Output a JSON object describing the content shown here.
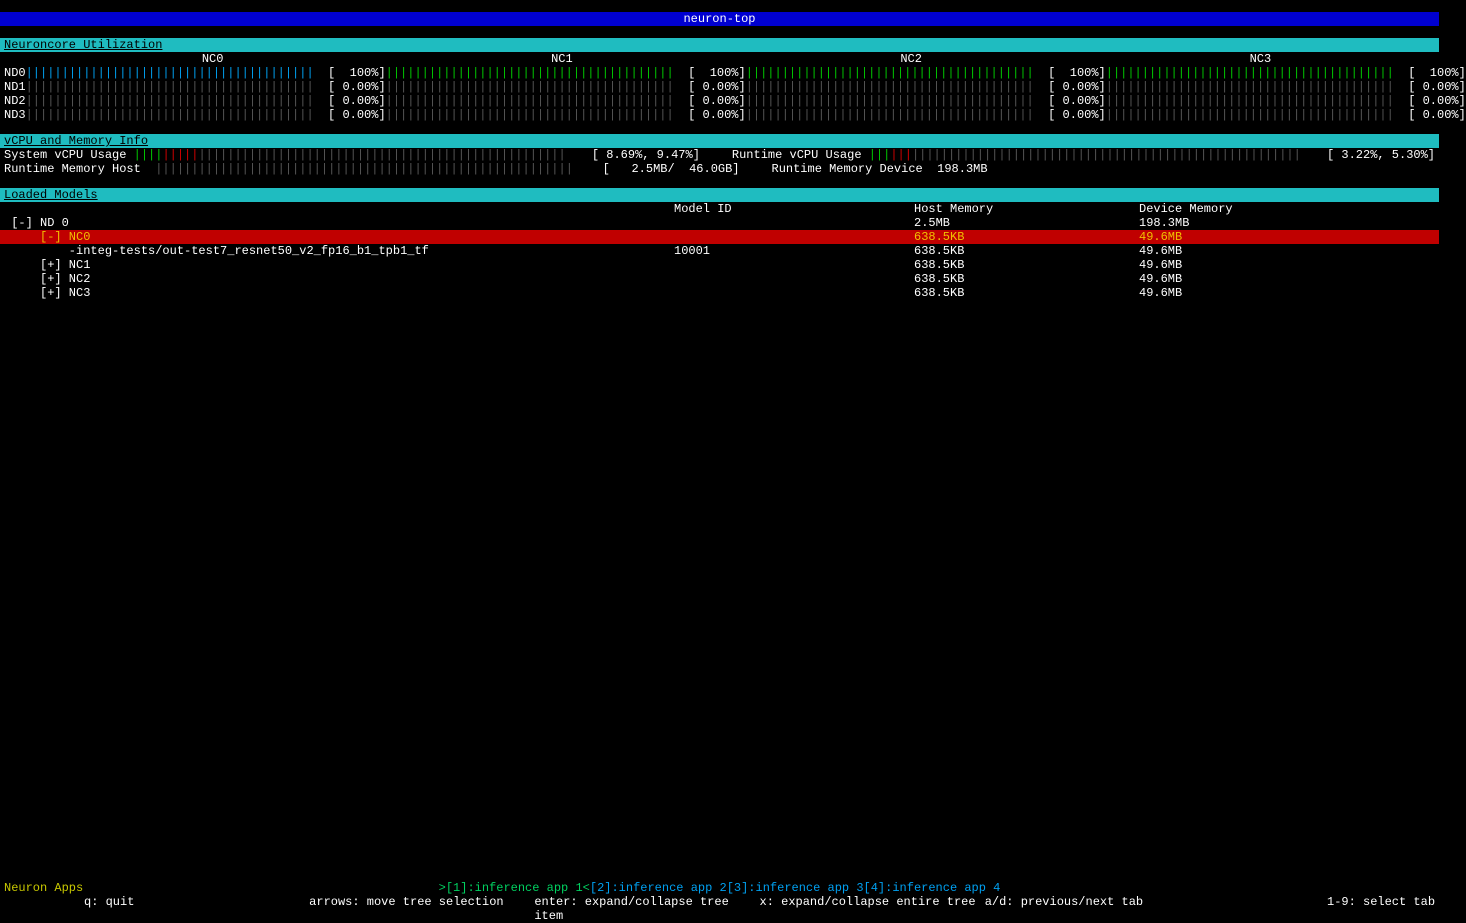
{
  "colors": {
    "title_bg": "#0000d0",
    "section_bg": "#1fbcc0",
    "selected_bg": "#c00000",
    "selected_fg": "#f0c000",
    "tick_blue": "#00a0f0",
    "tick_green": "#00c800",
    "tick_gray": "#555555",
    "tick_red": "#d00000",
    "yellow": "#c8c800",
    "footer_tab": "#00a0f0",
    "footer_tab_active": "#00d060"
  },
  "title": "neuron-top",
  "sections": {
    "util_header": "Neuroncore Utilization",
    "vcpu_header": "vCPU and Memory Info",
    "models_header": "Loaded Models"
  },
  "nc_headers": [
    "NC0",
    "NC1",
    "NC2",
    "NC3"
  ],
  "utilization": {
    "bar_segments": 40,
    "devices": [
      {
        "name": "ND0",
        "cores": [
          {
            "pct": "100%",
            "fill": 100,
            "color": "blue"
          },
          {
            "pct": "100%",
            "fill": 100,
            "color": "green"
          },
          {
            "pct": "100%",
            "fill": 100,
            "color": "green"
          },
          {
            "pct": "100%",
            "fill": 100,
            "color": "green"
          }
        ]
      },
      {
        "name": "ND1",
        "cores": [
          {
            "pct": "0.00%",
            "fill": 0,
            "color": "gray"
          },
          {
            "pct": "0.00%",
            "fill": 0,
            "color": "gray"
          },
          {
            "pct": "0.00%",
            "fill": 0,
            "color": "gray"
          },
          {
            "pct": "0.00%",
            "fill": 0,
            "color": "gray"
          }
        ]
      },
      {
        "name": "ND2",
        "cores": [
          {
            "pct": "0.00%",
            "fill": 0,
            "color": "gray"
          },
          {
            "pct": "0.00%",
            "fill": 0,
            "color": "gray"
          },
          {
            "pct": "0.00%",
            "fill": 0,
            "color": "gray"
          },
          {
            "pct": "0.00%",
            "fill": 0,
            "color": "gray"
          }
        ]
      },
      {
        "name": "ND3",
        "cores": [
          {
            "pct": "0.00%",
            "fill": 0,
            "color": "gray"
          },
          {
            "pct": "0.00%",
            "fill": 0,
            "color": "gray"
          },
          {
            "pct": "0.00%",
            "fill": 0,
            "color": "gray"
          },
          {
            "pct": "0.00%",
            "fill": 0,
            "color": "gray"
          }
        ]
      }
    ]
  },
  "vcpu": {
    "system_label": "System vCPU Usage ",
    "system_bar": {
      "segments": 60,
      "green": 4,
      "red": 5,
      "gray": 51
    },
    "system_val": "[ 8.69%, 9.47%]",
    "runtime_cpu_label": "Runtime vCPU Usage ",
    "runtime_cpu_bar": {
      "segments": 60,
      "green": 3,
      "red": 3,
      "gray": 54
    },
    "runtime_cpu_val": "[ 3.22%, 5.30%]",
    "runtime_mem_host_label": "Runtime Memory Host  ",
    "runtime_mem_host_bar": {
      "segments": 58,
      "green": 0,
      "red": 0,
      "gray": 58
    },
    "runtime_mem_host_val": "[   2.5MB/  46.0GB]",
    "runtime_mem_dev_label": "Runtime Memory Device  ",
    "runtime_mem_dev_val": "198.3MB"
  },
  "models_columns": [
    "",
    "Model ID",
    "Host Memory",
    "Device Memory"
  ],
  "models_tree": [
    {
      "indent": 0,
      "toggle": "[-]",
      "label": "ND 0",
      "model_id": "",
      "host": "2.5MB",
      "device": "198.3MB",
      "selected": false,
      "interactable": true
    },
    {
      "indent": 1,
      "toggle": "[-]",
      "label": "NC0",
      "model_id": "",
      "host": "638.5KB",
      "device": "49.6MB",
      "selected": true,
      "interactable": true
    },
    {
      "indent": 2,
      "toggle": "",
      "label": "-integ-tests/out-test7_resnet50_v2_fp16_b1_tpb1_tf",
      "model_id": "10001",
      "host": "638.5KB",
      "device": "49.6MB",
      "selected": false,
      "interactable": true
    },
    {
      "indent": 1,
      "toggle": "[+]",
      "label": "NC1",
      "model_id": "",
      "host": "638.5KB",
      "device": "49.6MB",
      "selected": false,
      "interactable": true
    },
    {
      "indent": 1,
      "toggle": "[+]",
      "label": "NC2",
      "model_id": "",
      "host": "638.5KB",
      "device": "49.6MB",
      "selected": false,
      "interactable": true
    },
    {
      "indent": 1,
      "toggle": "[+]",
      "label": "NC3",
      "model_id": "",
      "host": "638.5KB",
      "device": "49.6MB",
      "selected": false,
      "interactable": true
    }
  ],
  "footer": {
    "apps_label": "Neuron Apps",
    "tabs": [
      {
        "text": ">[1]:inference app 1<",
        "active": true
      },
      {
        "text": "[2]:inference app 2",
        "active": false
      },
      {
        "text": "[3]:inference app 3",
        "active": false
      },
      {
        "text": "[4]:inference app 4",
        "active": false
      }
    ],
    "help": [
      "q: quit",
      "arrows: move tree selection",
      "enter: expand/collapse tree item",
      "x: expand/collapse entire tree",
      "a/d: previous/next tab",
      "1-9: select tab"
    ]
  }
}
